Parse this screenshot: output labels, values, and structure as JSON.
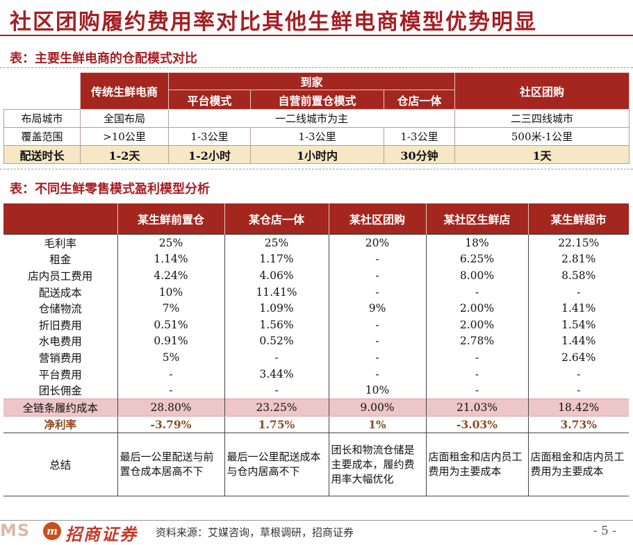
{
  "title": "社区团购履约费用率对比其他生鲜电商模型优势明显",
  "table1": {
    "caption": "表：主要生鲜电商的仓配模式对比",
    "header": {
      "traditional": "传统生鲜电商",
      "to_home": "到家",
      "community": "社区团购",
      "platform": "平台模式",
      "self_front": "自营前置仓模式",
      "store_warehouse": "仓店一体"
    },
    "rows": [
      {
        "label": "布局城市",
        "traditional": "全国布局",
        "to_home": "一二线城市为主",
        "community": "二三四线城市"
      },
      {
        "label": "覆盖范围",
        "traditional": ">10公里",
        "platform": "1-3公里",
        "self_front": "1-3公里",
        "store_warehouse": "1-3公里",
        "community": "500米-1公里"
      },
      {
        "label": "配送时长",
        "traditional": "1-2天",
        "platform": "1-2小时",
        "self_front": "1小时内",
        "store_warehouse": "30分钟",
        "community": "1天"
      }
    ]
  },
  "table2": {
    "caption": "表：不同生鲜零售模式盈利模型分析",
    "columns": [
      "某生鲜前置仓",
      "某仓店一体",
      "某社区团购",
      "某社区生鲜店",
      "某生鲜超市"
    ],
    "rows": [
      {
        "label": "毛利率",
        "values": [
          "25%",
          "25%",
          "20%",
          "18%",
          "22.15%"
        ]
      },
      {
        "label": "租金",
        "values": [
          "1.14%",
          "1.17%",
          "-",
          "6.25%",
          "2.81%"
        ]
      },
      {
        "label": "店内员工费用",
        "values": [
          "4.24%",
          "4.06%",
          "-",
          "8.00%",
          "8.58%"
        ]
      },
      {
        "label": "配送成本",
        "values": [
          "10%",
          "11.41%",
          "-",
          "-",
          "-"
        ]
      },
      {
        "label": "仓储物流",
        "values": [
          "7%",
          "1.09%",
          "9%",
          "2.00%",
          "1.41%"
        ]
      },
      {
        "label": "折旧费用",
        "values": [
          "0.51%",
          "1.56%",
          "-",
          "2.00%",
          "1.54%"
        ]
      },
      {
        "label": "水电费用",
        "values": [
          "0.91%",
          "0.52%",
          "-",
          "2.78%",
          "1.44%"
        ]
      },
      {
        "label": "营销费用",
        "values": [
          "5%",
          "-",
          "-",
          "-",
          "2.64%"
        ]
      },
      {
        "label": "平台费用",
        "values": [
          "-",
          "3.44%",
          "-",
          "-",
          "-"
        ]
      },
      {
        "label": "团长佣金",
        "values": [
          "-",
          "-",
          "10%",
          "-",
          "-"
        ]
      },
      {
        "label": "全链条履约成本",
        "values": [
          "28.80%",
          "23.25%",
          "9.00%",
          "21.03%",
          "18.42%"
        ]
      },
      {
        "label": "净利率",
        "values": [
          "-3.79%",
          "1.75%",
          "1%",
          "-3.03%",
          "3.73%"
        ]
      }
    ],
    "summary": {
      "label": "总结",
      "values": [
        "最后一公里配送与前置仓成本居高不下",
        "最后一公里配送成本与仓内居高不下",
        "团长和物流仓储是主要成本，履约费用率大幅优化",
        "店面租金和店内员工费用为主要成本",
        "店面租金和店内员工费用为主要成本"
      ]
    }
  },
  "footer": {
    "logo_left": "MS",
    "logo_mark": "m",
    "logo_name": "招商证券",
    "source": "资料来源：艾媒咨询，草根调研，招商证券",
    "page": "- 5 -"
  }
}
